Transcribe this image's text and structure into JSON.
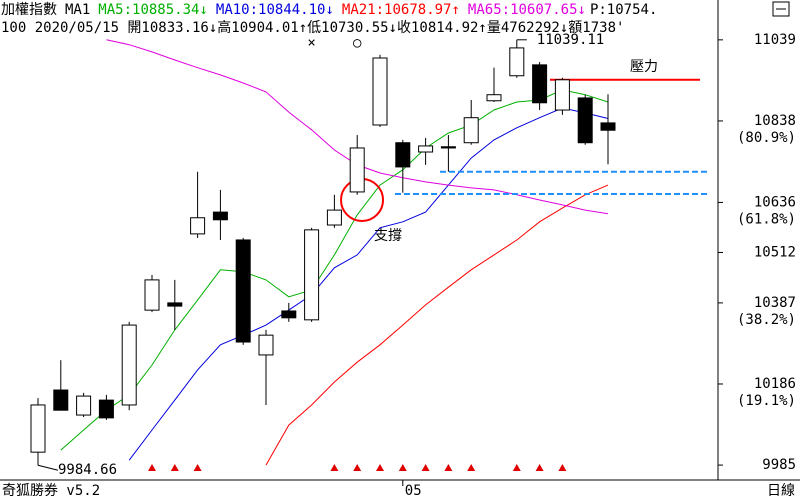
{
  "chart_data": {
    "type": "candlestick",
    "title": "加權指數",
    "period_label": "MA1",
    "info": "100 2020/05/15 開10833.16↓高10904.01↑低10730.55↓收10814.92↑量4762292↓額1738'",
    "price_label": "P:10754.",
    "footer": "奇狐勝券 v5.2",
    "interval": "日線",
    "categories": [
      null,
      null,
      null,
      null,
      null,
      null,
      null,
      null,
      null,
      null,
      null,
      null,
      null,
      null,
      null,
      null,
      "05",
      null,
      null,
      null,
      null,
      null,
      null,
      null,
      null,
      null
    ],
    "open": [
      10017,
      10171,
      10109,
      10146,
      10134,
      10369,
      10387,
      10558,
      10612,
      10543,
      10258,
      10367,
      10345,
      10580,
      10662,
      10828,
      10784,
      10761,
      10774,
      10784,
      10888,
      10950,
      10977,
      10865,
      10895,
      10833.16
    ],
    "high": [
      10151,
      10245,
      10164,
      10159,
      10340,
      10456,
      10444,
      10712,
      10667,
      10548,
      10320,
      10387,
      10573,
      10655,
      10803,
      11002,
      10791,
      10796,
      10803,
      10890,
      10970,
      11039.11,
      10984,
      10945,
      10903,
      10904.01
    ],
    "low": [
      9984.66,
      10121,
      10104,
      10097,
      10121,
      10364,
      10320,
      10548,
      10543,
      10283,
      10134,
      10340,
      10340,
      10573,
      10655,
      10823,
      10660,
      10729,
      10712,
      10779,
      10885,
      10945,
      10865,
      10853,
      10779,
      10730.55
    ],
    "close": [
      10134,
      10121,
      10156,
      10102,
      10332,
      10444,
      10379,
      10598,
      10593,
      10290,
      10307,
      10350,
      10568,
      10617,
      10771,
      10994,
      10724,
      10776,
      10771,
      10846,
      10903,
      11019,
      10883,
      10940,
      10784,
      10814.92
    ],
    "up_color": "#ffffff",
    "down_color": "#000000",
    "series": [
      {
        "name": "MA5:10885.34",
        "trend": "↓",
        "color": "#00b000",
        "values": [
          null,
          10022,
          10072,
          10121,
          10159,
          10233,
          10320,
          10394,
          10469,
          10464,
          10444,
          10402,
          10419,
          10506,
          10605,
          10679,
          10717,
          10771,
          10808,
          10828,
          10865,
          10885,
          10890,
          10915,
          10903,
          10885
        ]
      },
      {
        "name": "MA10:10844.10",
        "trend": "↓",
        "color": "#0000e0",
        "values": [
          null,
          null,
          null,
          null,
          9997,
          10072,
          10146,
          10221,
          10283,
          10307,
          10332,
          10369,
          10407,
          10474,
          10506,
          10573,
          10588,
          10612,
          10679,
          10746,
          10791,
          10821,
          10846,
          10870,
          10858,
          10844
        ]
      },
      {
        "name": "MA21:10678.97",
        "trend": "↑",
        "color": "#ff0000",
        "values": [
          null,
          null,
          null,
          null,
          null,
          null,
          null,
          null,
          null,
          null,
          9985,
          10084,
          10134,
          10191,
          10240,
          10283,
          10332,
          10382,
          10426,
          10469,
          10506,
          10543,
          10588,
          10622,
          10655,
          10679
        ]
      },
      {
        "name": "MA65:10607.65",
        "trend": "↓",
        "color": "#e000e0",
        "values": [
          null,
          null,
          null,
          11039,
          11027,
          11009,
          10989,
          10970,
          10952,
          10932,
          10910,
          10860,
          10816,
          10766,
          10729,
          10709,
          10697,
          10687,
          10679,
          10672,
          10667,
          10655,
          10642,
          10630,
          10617,
          10608
        ]
      }
    ],
    "ylim": [
      9948,
      11051
    ],
    "yticks": [
      9985,
      10186,
      10387,
      10512,
      10636,
      10838,
      11039
    ],
    "ytick_notes": [
      null,
      "(19.1%)",
      "(38.2%)",
      null,
      "(61.8%)",
      "(80.9%)",
      null
    ],
    "resistance": {
      "text": "壓力",
      "value": 10940,
      "color": "#ff0000"
    },
    "support": {
      "text": "支撐",
      "values": [
        10712,
        10657
      ],
      "color": "#1e90ff"
    },
    "top_marks": [
      {
        "index": 12,
        "text": "×"
      },
      {
        "index": 14,
        "text": "○"
      }
    ],
    "signal_days": [
      5,
      6,
      7,
      13,
      14,
      15,
      16,
      17,
      18,
      19,
      21,
      22,
      23
    ],
    "signal_color": "#e00000"
  }
}
